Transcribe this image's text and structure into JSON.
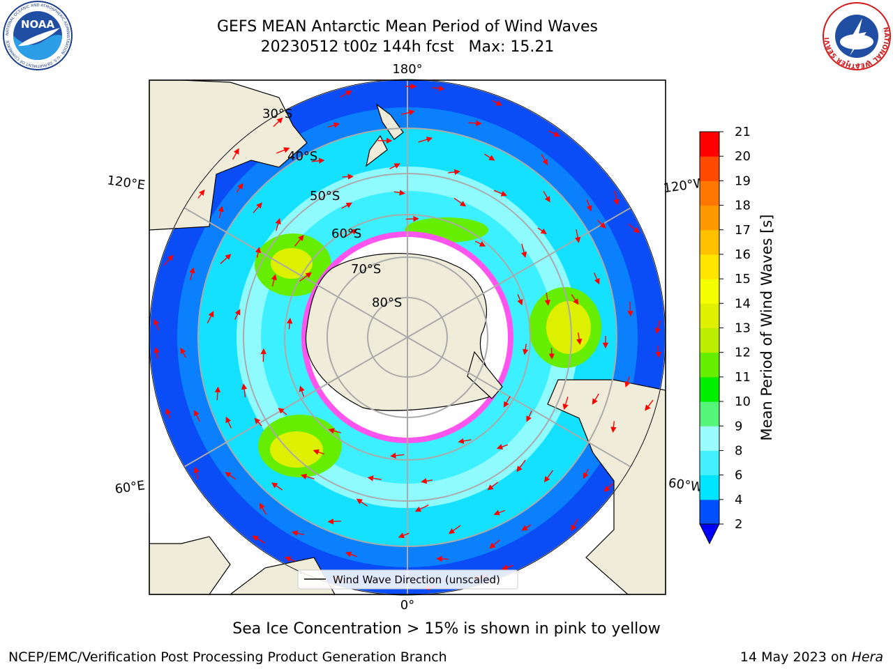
{
  "header": {
    "title_line1": "GEFS MEAN Antarctic Mean Period of Wind Waves",
    "title_line2": "20230512 t00z 144h fcst   Max: 15.21"
  },
  "map": {
    "longitude_labels": {
      "top": "180°",
      "bottom": "0°",
      "upper_left": "120°E",
      "lower_left": "60°E",
      "upper_right": "120°W",
      "lower_right": "60°W"
    },
    "latitude_labels": [
      "30°S",
      "40°S",
      "50°S",
      "60°S",
      "70°S",
      "80°S"
    ],
    "legend_label": "Wind Wave Direction (unscaled)"
  },
  "colorbar": {
    "label": "Mean Period of Wind Waves [s]",
    "ticks": [
      "2",
      "4",
      "6",
      "8",
      "9",
      "10",
      "11",
      "12",
      "13",
      "14",
      "15",
      "16",
      "17",
      "18",
      "19",
      "20",
      "21"
    ],
    "colors": [
      "#0050ff",
      "#00e5ff",
      "#44f0ff",
      "#9afcff",
      "#55f57a",
      "#00ee00",
      "#66ee00",
      "#bbee00",
      "#dff000",
      "#f5ff00",
      "#ffe600",
      "#ffc000",
      "#ff9900",
      "#ff7700",
      "#ff4a00",
      "#ff0000"
    ],
    "extend_color": "#0000ff"
  },
  "caption": "Sea Ice Concentration > 15% is shown in pink to yellow",
  "footer": {
    "left": "NCEP/EMC/Verification Post Processing Product Generation Branch",
    "right_prefix": "14 May 2023 on ",
    "right_machine": "Hera"
  },
  "logos": {
    "noaa": {
      "text": "NOAA",
      "ring_text": "NATIONAL OCEANIC AND ATMOSPHERIC ADMINISTRATION · U.S. DEPARTMENT OF COMMERCE"
    },
    "nws": {
      "ring_text": "NATIONAL WEATHER SERVICE"
    }
  }
}
